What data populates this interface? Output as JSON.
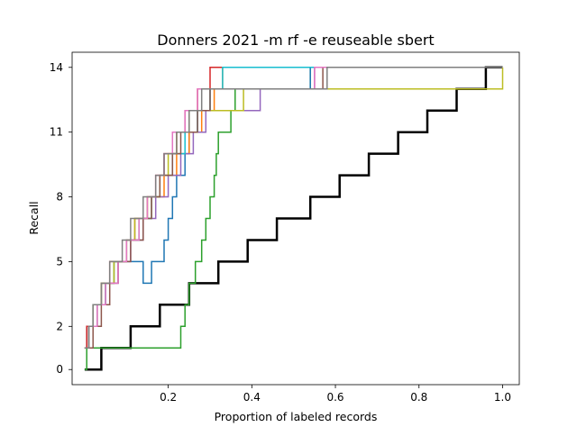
{
  "chart_data": {
    "type": "line",
    "title": "Donners 2021 -m rf -e reuseable sbert",
    "xlabel": "Proportion of labeled records",
    "ylabel": "Recall",
    "xlim": [
      -0.03,
      1.04
    ],
    "ylim": [
      -0.7,
      14.7
    ],
    "xticks": [
      {
        "value": 0.2,
        "label": "0.2"
      },
      {
        "value": 0.4,
        "label": "0.4"
      },
      {
        "value": 0.6,
        "label": "0.6"
      },
      {
        "value": 0.8,
        "label": "0.8"
      },
      {
        "value": 1.0,
        "label": "1.0"
      }
    ],
    "yticks": [
      {
        "value": 0,
        "label": "0"
      },
      {
        "value": 2,
        "label": "2"
      },
      {
        "value": 5,
        "label": "5"
      },
      {
        "value": 8,
        "label": "8"
      },
      {
        "value": 11,
        "label": "11"
      },
      {
        "value": 14,
        "label": "14"
      }
    ],
    "grid": false,
    "legend": "none",
    "series": [
      {
        "color": "#000000",
        "width": 2.5,
        "x": [
          0.0,
          0.04,
          0.11,
          0.18,
          0.25,
          0.32,
          0.39,
          0.46,
          0.54,
          0.61,
          0.68,
          0.75,
          0.82,
          0.89,
          0.96,
          1.0
        ],
        "y": [
          0,
          1,
          2,
          3,
          4,
          5,
          6,
          7,
          8,
          9,
          10,
          11,
          12,
          13,
          14,
          14
        ]
      },
      {
        "color": "#2ca02c",
        "width": 1.5,
        "x": [
          0.0,
          0.005,
          0.01,
          0.23,
          0.24,
          0.25,
          0.265,
          0.28,
          0.29,
          0.3,
          0.31,
          0.315,
          0.32,
          0.33,
          0.34,
          0.35,
          0.36,
          0.54,
          1.0
        ],
        "y": [
          0,
          1,
          1,
          2,
          3,
          4,
          5,
          6,
          7,
          8,
          9,
          10,
          11,
          11,
          11,
          12,
          13,
          14,
          14
        ]
      },
      {
        "color": "#1f77b4",
        "width": 1.5,
        "x": [
          0.0,
          0.005,
          0.02,
          0.04,
          0.07,
          0.09,
          0.14,
          0.16,
          0.19,
          0.2,
          0.21,
          0.22,
          0.24,
          0.25,
          0.27,
          0.3,
          0.54,
          1.0
        ],
        "y": [
          1,
          2,
          3,
          4,
          5,
          5,
          4,
          5,
          6,
          7,
          8,
          9,
          10,
          11,
          12,
          13,
          14,
          14
        ]
      },
      {
        "color": "#d62728",
        "width": 1.5,
        "x": [
          0.0,
          0.005,
          0.03,
          0.04,
          0.06,
          0.08,
          0.1,
          0.12,
          0.15,
          0.17,
          0.19,
          0.22,
          0.24,
          0.27,
          0.3,
          0.54,
          1.0
        ],
        "y": [
          1,
          2,
          3,
          4,
          5,
          5,
          6,
          7,
          8,
          9,
          10,
          11,
          12,
          13,
          14,
          14,
          14
        ]
      },
      {
        "color": "#ff7f0e",
        "width": 1.5,
        "x": [
          0.0,
          0.01,
          0.03,
          0.05,
          0.07,
          0.1,
          0.13,
          0.16,
          0.19,
          0.22,
          0.25,
          0.28,
          0.31,
          0.33,
          0.62,
          1.0
        ],
        "y": [
          1,
          2,
          3,
          4,
          5,
          6,
          7,
          8,
          9,
          10,
          11,
          12,
          13,
          14,
          14,
          14
        ]
      },
      {
        "color": "#9467bd",
        "width": 1.5,
        "x": [
          0.0,
          0.01,
          0.03,
          0.05,
          0.08,
          0.11,
          0.14,
          0.17,
          0.2,
          0.23,
          0.26,
          0.29,
          0.42,
          0.55,
          1.0
        ],
        "y": [
          1,
          2,
          3,
          4,
          5,
          6,
          7,
          8,
          9,
          10,
          11,
          12,
          13,
          14,
          14
        ]
      },
      {
        "color": "#17becf",
        "width": 1.5,
        "x": [
          0.0,
          0.01,
          0.03,
          0.05,
          0.07,
          0.1,
          0.13,
          0.16,
          0.18,
          0.21,
          0.24,
          0.27,
          0.3,
          0.33,
          1.0
        ],
        "y": [
          1,
          2,
          3,
          4,
          5,
          6,
          7,
          8,
          9,
          10,
          11,
          12,
          13,
          14,
          14
        ]
      },
      {
        "color": "#bcbd22",
        "width": 1.5,
        "x": [
          0.0,
          0.01,
          0.02,
          0.04,
          0.07,
          0.1,
          0.12,
          0.15,
          0.18,
          0.2,
          0.22,
          0.25,
          0.38,
          1.0
        ],
        "y": [
          1,
          2,
          3,
          4,
          5,
          6,
          7,
          8,
          9,
          10,
          11,
          12,
          13,
          14
        ]
      },
      {
        "color": "#8c564b",
        "width": 1.5,
        "x": [
          0.0,
          0.02,
          0.04,
          0.06,
          0.08,
          0.11,
          0.14,
          0.16,
          0.18,
          0.21,
          0.23,
          0.27,
          0.3,
          0.57,
          1.0
        ],
        "y": [
          1,
          2,
          3,
          4,
          5,
          6,
          7,
          8,
          9,
          10,
          11,
          12,
          13,
          14,
          14
        ]
      },
      {
        "color": "#e377c2",
        "width": 1.5,
        "x": [
          0.0,
          0.01,
          0.03,
          0.05,
          0.08,
          0.1,
          0.13,
          0.15,
          0.17,
          0.19,
          0.21,
          0.24,
          0.27,
          0.55,
          1.0
        ],
        "y": [
          1,
          2,
          3,
          4,
          5,
          6,
          7,
          8,
          9,
          10,
          11,
          12,
          13,
          14,
          14
        ]
      },
      {
        "color": "#7f7f7f",
        "width": 1.5,
        "x": [
          0.0,
          0.01,
          0.02,
          0.04,
          0.06,
          0.09,
          0.11,
          0.14,
          0.17,
          0.19,
          0.22,
          0.25,
          0.28,
          0.58,
          1.0
        ],
        "y": [
          1,
          2,
          3,
          4,
          5,
          6,
          7,
          8,
          9,
          10,
          11,
          12,
          13,
          14,
          14
        ]
      }
    ]
  }
}
